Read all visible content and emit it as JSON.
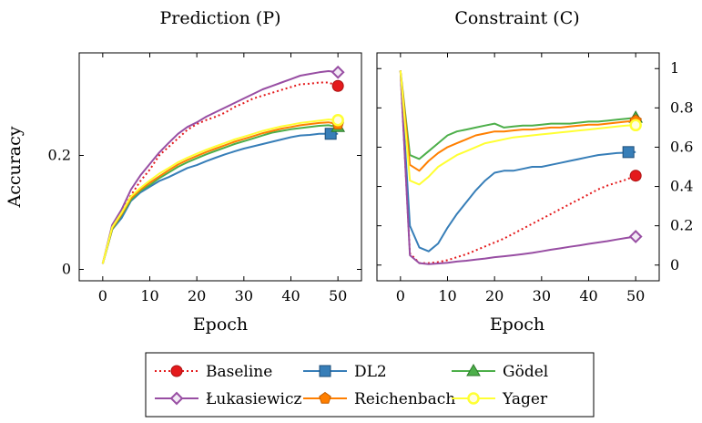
{
  "figure": {
    "ylabel": "Accuracy"
  },
  "legend": {
    "entries": [
      {
        "name": "Baseline",
        "color": "#e41a1c",
        "marker": "circle",
        "dash": true
      },
      {
        "name": "DL2",
        "color": "#377eb8",
        "marker": "square",
        "dash": false
      },
      {
        "name": "Gödel",
        "color": "#4daf4a",
        "marker": "triangle",
        "dash": false
      },
      {
        "name": "Łukasiewicz",
        "color": "#984ea3",
        "marker": "diamond",
        "dash": false
      },
      {
        "name": "Reichenbach",
        "color": "#ff7f00",
        "marker": "pentagon",
        "dash": false
      },
      {
        "name": "Yager",
        "color": "#ffff33",
        "marker": "circle-open",
        "dash": false
      }
    ]
  },
  "chart_data": [
    {
      "id": "prediction",
      "type": "line",
      "title": "Prediction (P)",
      "xlabel": "Epoch",
      "ylabel": "Accuracy",
      "xlim": [
        -5,
        55
      ],
      "ylim": [
        -0.02,
        0.38
      ],
      "xticks": [
        0,
        10,
        20,
        30,
        40,
        50
      ],
      "yticks": [
        0,
        0.2
      ],
      "ytick_labels": [
        "0",
        "0.2"
      ],
      "yaxis_side": "left",
      "x": [
        0,
        2,
        4,
        6,
        8,
        10,
        12,
        14,
        16,
        18,
        20,
        22,
        24,
        26,
        28,
        30,
        32,
        34,
        36,
        38,
        40,
        42,
        44,
        46,
        48,
        50
      ],
      "series": [
        {
          "name": "Baseline",
          "values": [
            0.01,
            0.075,
            0.1,
            0.13,
            0.155,
            0.175,
            0.2,
            0.215,
            0.23,
            0.245,
            0.255,
            0.262,
            0.268,
            0.275,
            0.285,
            0.292,
            0.3,
            0.305,
            0.31,
            0.315,
            0.32,
            0.325,
            0.326,
            0.328,
            0.328,
            0.322
          ]
        },
        {
          "name": "DL2",
          "values": [
            0.01,
            0.07,
            0.09,
            0.12,
            0.135,
            0.145,
            0.155,
            0.162,
            0.17,
            0.178,
            0.183,
            0.19,
            0.196,
            0.202,
            0.207,
            0.212,
            0.216,
            0.22,
            0.224,
            0.228,
            0.232,
            0.235,
            0.236,
            0.238,
            0.238,
            0.238
          ]
        },
        {
          "name": "Gödel",
          "values": [
            0.01,
            0.07,
            0.095,
            0.122,
            0.138,
            0.148,
            0.16,
            0.17,
            0.18,
            0.188,
            0.195,
            0.202,
            0.208,
            0.214,
            0.22,
            0.225,
            0.23,
            0.235,
            0.24,
            0.243,
            0.246,
            0.248,
            0.25,
            0.252,
            0.253,
            0.25
          ]
        },
        {
          "name": "Łukasiewicz",
          "values": [
            0.01,
            0.078,
            0.105,
            0.14,
            0.165,
            0.185,
            0.205,
            0.222,
            0.238,
            0.25,
            0.258,
            0.268,
            0.276,
            0.284,
            0.292,
            0.3,
            0.308,
            0.316,
            0.322,
            0.328,
            0.334,
            0.34,
            0.343,
            0.346,
            0.348,
            0.346
          ]
        },
        {
          "name": "Reichenbach",
          "values": [
            0.01,
            0.072,
            0.097,
            0.125,
            0.14,
            0.152,
            0.163,
            0.174,
            0.184,
            0.192,
            0.199,
            0.206,
            0.212,
            0.218,
            0.224,
            0.229,
            0.234,
            0.239,
            0.243,
            0.247,
            0.25,
            0.253,
            0.255,
            0.257,
            0.258,
            0.255
          ]
        },
        {
          "name": "Yager",
          "values": [
            0.01,
            0.074,
            0.099,
            0.128,
            0.143,
            0.156,
            0.168,
            0.178,
            0.188,
            0.196,
            0.203,
            0.21,
            0.216,
            0.222,
            0.228,
            0.233,
            0.238,
            0.243,
            0.247,
            0.251,
            0.254,
            0.257,
            0.259,
            0.261,
            0.263,
            0.262
          ]
        }
      ]
    },
    {
      "id": "constraint",
      "type": "line",
      "title": "Constraint (C)",
      "xlabel": "Epoch",
      "ylabel": "",
      "xlim": [
        -5,
        55
      ],
      "ylim": [
        -0.08,
        1.08
      ],
      "xticks": [
        0,
        10,
        20,
        30,
        40,
        50
      ],
      "yticks": [
        0,
        0.2,
        0.4,
        0.6,
        0.8,
        1
      ],
      "ytick_labels": [
        "0",
        "0.2",
        "0.4",
        "0.6",
        "0.8",
        "1"
      ],
      "yaxis_side": "right",
      "x": [
        0,
        2,
        4,
        6,
        8,
        10,
        12,
        14,
        16,
        18,
        20,
        22,
        24,
        26,
        28,
        30,
        32,
        34,
        36,
        38,
        40,
        42,
        44,
        46,
        48,
        50
      ],
      "series": [
        {
          "name": "Baseline",
          "values": [
            0.99,
            0.06,
            0.01,
            0.01,
            0.015,
            0.025,
            0.04,
            0.055,
            0.075,
            0.095,
            0.115,
            0.135,
            0.16,
            0.185,
            0.21,
            0.235,
            0.26,
            0.285,
            0.31,
            0.335,
            0.36,
            0.385,
            0.405,
            0.42,
            0.435,
            0.455
          ]
        },
        {
          "name": "DL2",
          "values": [
            0.99,
            0.2,
            0.09,
            0.07,
            0.11,
            0.19,
            0.26,
            0.32,
            0.38,
            0.43,
            0.47,
            0.48,
            0.48,
            0.49,
            0.5,
            0.5,
            0.51,
            0.52,
            0.53,
            0.54,
            0.55,
            0.56,
            0.565,
            0.57,
            0.572,
            0.575
          ]
        },
        {
          "name": "Gödel",
          "values": [
            0.99,
            0.56,
            0.54,
            0.58,
            0.62,
            0.66,
            0.68,
            0.69,
            0.7,
            0.71,
            0.72,
            0.7,
            0.705,
            0.71,
            0.71,
            0.715,
            0.72,
            0.72,
            0.72,
            0.725,
            0.73,
            0.73,
            0.735,
            0.74,
            0.745,
            0.75
          ]
        },
        {
          "name": "Łukasiewicz",
          "values": [
            0.99,
            0.05,
            0.01,
            0.005,
            0.008,
            0.012,
            0.018,
            0.022,
            0.028,
            0.033,
            0.04,
            0.045,
            0.05,
            0.056,
            0.062,
            0.07,
            0.078,
            0.085,
            0.093,
            0.1,
            0.108,
            0.115,
            0.122,
            0.13,
            0.138,
            0.145
          ]
        },
        {
          "name": "Reichenbach",
          "values": [
            0.99,
            0.51,
            0.48,
            0.53,
            0.57,
            0.6,
            0.62,
            0.64,
            0.66,
            0.67,
            0.68,
            0.68,
            0.685,
            0.69,
            0.69,
            0.695,
            0.7,
            0.7,
            0.705,
            0.71,
            0.715,
            0.715,
            0.72,
            0.725,
            0.73,
            0.735
          ]
        },
        {
          "name": "Yager",
          "values": [
            0.99,
            0.43,
            0.41,
            0.45,
            0.5,
            0.53,
            0.56,
            0.58,
            0.6,
            0.62,
            0.63,
            0.64,
            0.65,
            0.655,
            0.66,
            0.665,
            0.67,
            0.675,
            0.68,
            0.685,
            0.69,
            0.695,
            0.7,
            0.705,
            0.71,
            0.712
          ]
        }
      ]
    }
  ]
}
